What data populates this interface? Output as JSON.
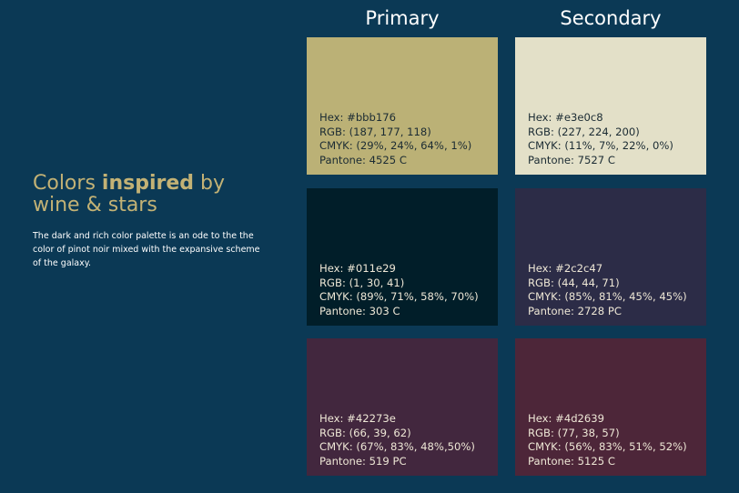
{
  "intro": {
    "heading_pre": "Colors ",
    "heading_bold": "inspired",
    "heading_post": " by wine & stars",
    "description": "The dark and rich color palette is an ode to the the color of pinot noir mixed with the expansive scheme of the galaxy."
  },
  "columns": {
    "primary": "Primary",
    "secondary": "Secondary"
  },
  "swatches": [
    {
      "color": "#bbb176",
      "hex": "Hex: #bbb176",
      "rgb": "RGB: (187, 177, 118)",
      "cmyk": "CMYK: (29%, 24%, 64%, 1%)",
      "pantone": "Pantone: 4525 C"
    },
    {
      "color": "#e3e0c8",
      "hex": "Hex: #e3e0c8",
      "rgb": "RGB: (227, 224, 200)",
      "cmyk": "CMYK: (11%, 7%, 22%, 0%)",
      "pantone": "Pantone: 7527 C"
    },
    {
      "color": "#011e29",
      "hex": "Hex: #011e29",
      "rgb": "RGB: (1, 30, 41)",
      "cmyk": "CMYK: (89%, 71%, 58%, 70%)",
      "pantone": "Pantone: 303 C"
    },
    {
      "color": "#2c2c47",
      "hex": "Hex: #2c2c47",
      "rgb": "RGB: (44, 44, 71)",
      "cmyk": "CMYK: (85%, 81%, 45%, 45%)",
      "pantone": "Pantone: 2728 PC"
    },
    {
      "color": "#42273e",
      "hex": "Hex: #42273e",
      "rgb": "RGB: (66, 39, 62)",
      "cmyk": "CMYK: (67%, 83%, 48%,50%)",
      "pantone": "Pantone: 519 PC"
    },
    {
      "color": "#4d2639",
      "hex": "Hex: #4d2639",
      "rgb": "RGB: (77, 38, 57)",
      "cmyk": "CMYK: (56%, 83%, 51%, 52%)",
      "pantone": "Pantone: 5125 C"
    }
  ]
}
